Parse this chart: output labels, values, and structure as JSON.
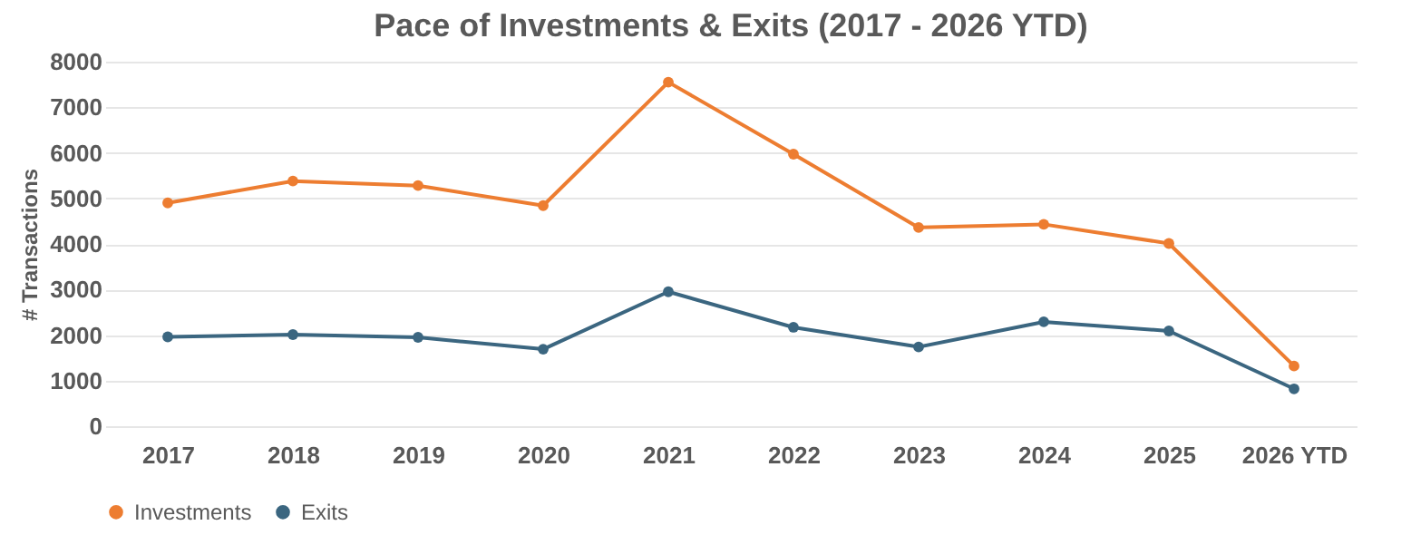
{
  "chart_data": {
    "type": "line",
    "title": "Pace of Investments & Exits (2017 - 2026 YTD)",
    "ylabel": "# Transactions",
    "categories": [
      "2017",
      "2018",
      "2019",
      "2020",
      "2021",
      "2022",
      "2023",
      "2024",
      "2025",
      "2026 YTD"
    ],
    "series": [
      {
        "name": "Investments",
        "color": "#ed7d31",
        "values": [
          4900,
          5380,
          5280,
          4840,
          7550,
          5970,
          4360,
          4430,
          4010,
          1320
        ]
      },
      {
        "name": "Exits",
        "color": "#3b6680",
        "values": [
          1960,
          2010,
          1950,
          1690,
          2950,
          2170,
          1740,
          2290,
          2090,
          820
        ]
      }
    ],
    "ylim": [
      0,
      8000
    ],
    "yticks": [
      0,
      1000,
      2000,
      3000,
      4000,
      5000,
      6000,
      7000,
      8000
    ],
    "grid": "y",
    "legend": "bottom",
    "marker": "circle",
    "line_style": "solid"
  }
}
